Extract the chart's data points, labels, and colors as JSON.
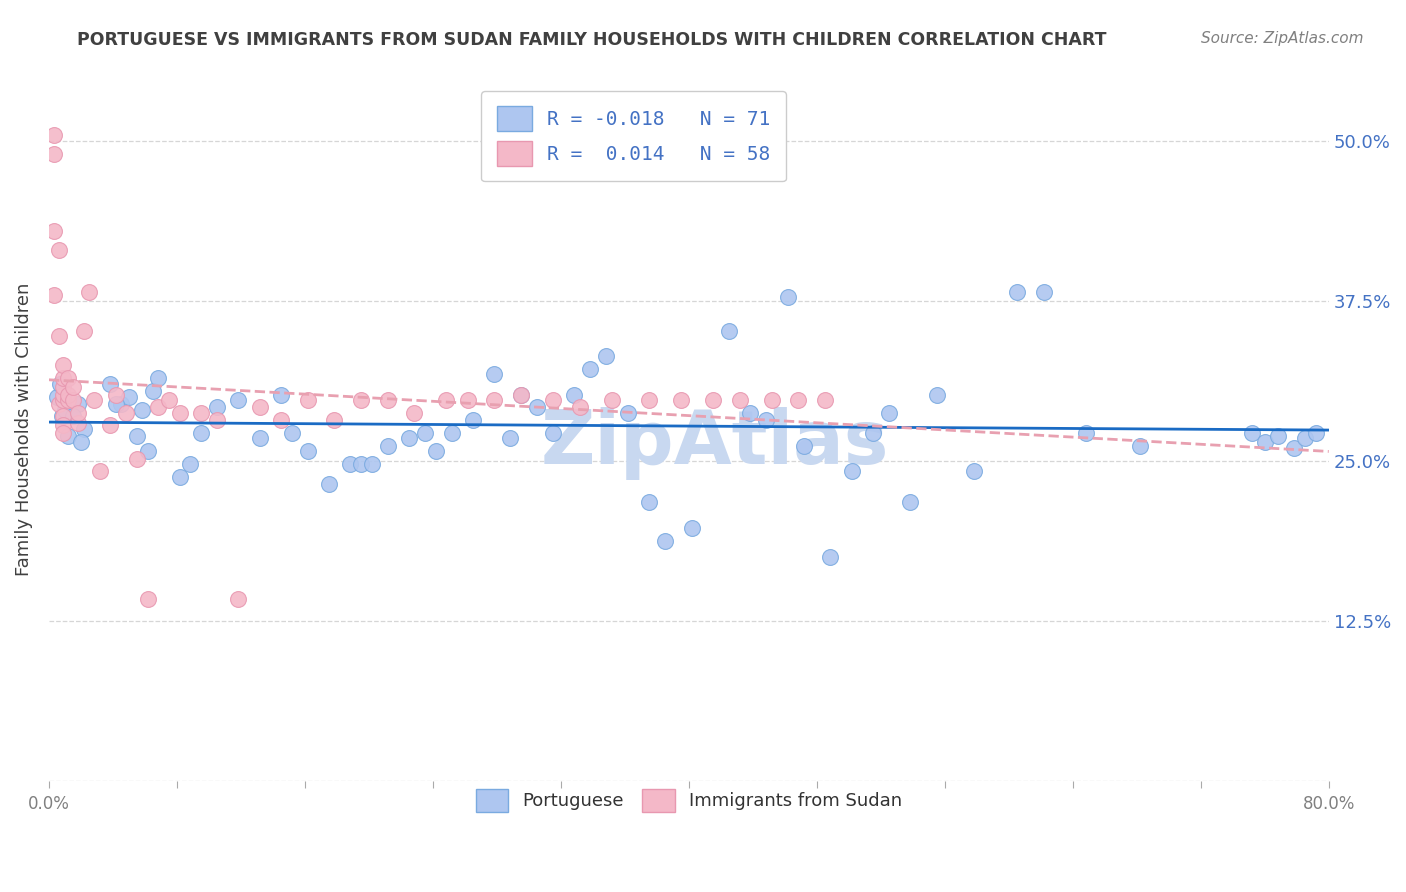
{
  "title": "PORTUGUESE VS IMMIGRANTS FROM SUDAN FAMILY HOUSEHOLDS WITH CHILDREN CORRELATION CHART",
  "source": "Source: ZipAtlas.com",
  "ylabel": "Family Households with Children",
  "xlim": [
    0.0,
    0.8
  ],
  "ylim": [
    0.0,
    0.55
  ],
  "ytick_positions": [
    0.0,
    0.125,
    0.25,
    0.375,
    0.5
  ],
  "ytick_labels_right": [
    "",
    "12.5%",
    "25.0%",
    "37.5%",
    "50.0%"
  ],
  "xtick_positions": [
    0.0,
    0.08,
    0.16,
    0.24,
    0.32,
    0.4,
    0.48,
    0.56,
    0.64,
    0.72,
    0.8
  ],
  "xtick_labels": [
    "0.0%",
    "",
    "",
    "",
    "",
    "",
    "",
    "",
    "",
    "",
    "80.0%"
  ],
  "watermark": "ZipAtlas",
  "blue_scatter_x": [
    0.008,
    0.012,
    0.005,
    0.018,
    0.022,
    0.01,
    0.015,
    0.007,
    0.02,
    0.045,
    0.05,
    0.038,
    0.065,
    0.058,
    0.042,
    0.055,
    0.068,
    0.062,
    0.088,
    0.082,
    0.095,
    0.105,
    0.118,
    0.132,
    0.145,
    0.152,
    0.162,
    0.175,
    0.188,
    0.195,
    0.202,
    0.212,
    0.225,
    0.235,
    0.242,
    0.252,
    0.265,
    0.278,
    0.288,
    0.295,
    0.305,
    0.315,
    0.328,
    0.338,
    0.348,
    0.362,
    0.375,
    0.385,
    0.402,
    0.425,
    0.438,
    0.448,
    0.462,
    0.472,
    0.488,
    0.502,
    0.515,
    0.525,
    0.538,
    0.555,
    0.578,
    0.605,
    0.622,
    0.648,
    0.682,
    0.752,
    0.76,
    0.768,
    0.778,
    0.785,
    0.792
  ],
  "blue_scatter_y": [
    0.285,
    0.27,
    0.3,
    0.295,
    0.275,
    0.29,
    0.285,
    0.31,
    0.265,
    0.295,
    0.3,
    0.31,
    0.305,
    0.29,
    0.295,
    0.27,
    0.315,
    0.258,
    0.248,
    0.238,
    0.272,
    0.292,
    0.298,
    0.268,
    0.302,
    0.272,
    0.258,
    0.232,
    0.248,
    0.248,
    0.248,
    0.262,
    0.268,
    0.272,
    0.258,
    0.272,
    0.282,
    0.318,
    0.268,
    0.302,
    0.292,
    0.272,
    0.302,
    0.322,
    0.332,
    0.288,
    0.218,
    0.188,
    0.198,
    0.352,
    0.288,
    0.282,
    0.378,
    0.262,
    0.175,
    0.242,
    0.272,
    0.288,
    0.218,
    0.302,
    0.242,
    0.382,
    0.382,
    0.272,
    0.262,
    0.272,
    0.265,
    0.27,
    0.26,
    0.268,
    0.272
  ],
  "pink_scatter_x": [
    0.003,
    0.003,
    0.003,
    0.003,
    0.006,
    0.006,
    0.006,
    0.009,
    0.009,
    0.009,
    0.009,
    0.009,
    0.009,
    0.009,
    0.009,
    0.012,
    0.012,
    0.012,
    0.015,
    0.015,
    0.018,
    0.018,
    0.022,
    0.025,
    0.028,
    0.032,
    0.038,
    0.042,
    0.048,
    0.055,
    0.062,
    0.068,
    0.075,
    0.082,
    0.095,
    0.105,
    0.118,
    0.132,
    0.145,
    0.162,
    0.178,
    0.195,
    0.212,
    0.228,
    0.248,
    0.262,
    0.278,
    0.295,
    0.315,
    0.332,
    0.352,
    0.375,
    0.395,
    0.415,
    0.432,
    0.452,
    0.468,
    0.485
  ],
  "pink_scatter_y": [
    0.505,
    0.49,
    0.38,
    0.43,
    0.415,
    0.348,
    0.295,
    0.298,
    0.285,
    0.278,
    0.272,
    0.302,
    0.308,
    0.315,
    0.325,
    0.298,
    0.302,
    0.315,
    0.298,
    0.308,
    0.28,
    0.288,
    0.352,
    0.382,
    0.298,
    0.242,
    0.278,
    0.302,
    0.288,
    0.252,
    0.142,
    0.292,
    0.298,
    0.288,
    0.288,
    0.282,
    0.142,
    0.292,
    0.282,
    0.298,
    0.282,
    0.298,
    0.298,
    0.288,
    0.298,
    0.298,
    0.298,
    0.302,
    0.298,
    0.292,
    0.298,
    0.298,
    0.298,
    0.298,
    0.298,
    0.298,
    0.298,
    0.298
  ],
  "blue_line_color": "#1a6bc4",
  "pink_line_color": "#e8a0b0",
  "scatter_blue_facecolor": "#aec6f0",
  "scatter_blue_edgecolor": "#7aaae0",
  "scatter_pink_facecolor": "#f4b8c8",
  "scatter_pink_edgecolor": "#e898b0",
  "background_color": "#ffffff",
  "grid_color": "#cccccc",
  "title_color": "#404040",
  "source_color": "#808080",
  "axis_label_color": "#404040",
  "right_tick_color": "#4472c4",
  "xtick_color": "#808080",
  "watermark_color": "#c8d8f0",
  "legend_r_color": "#4472c4",
  "legend_n_color": "#4472c4"
}
